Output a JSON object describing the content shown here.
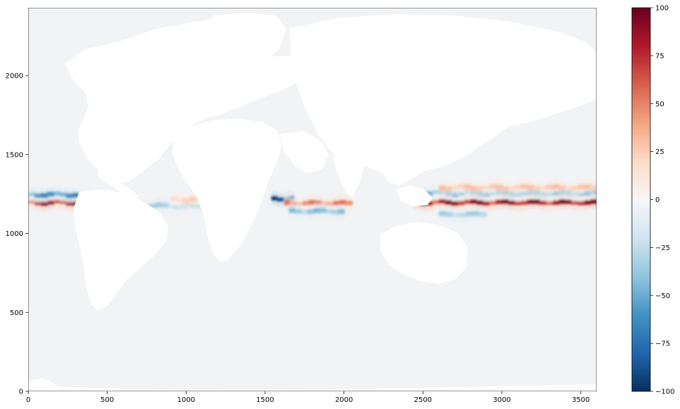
{
  "figure": {
    "background_color": "#ffffff",
    "land_color": "#ffffff",
    "ocean_base_color": "#f2f3f5"
  },
  "chart_data": {
    "type": "heatmap",
    "title": "",
    "xlabel": "",
    "ylabel": "",
    "xlim": [
      0,
      3600
    ],
    "ylim": [
      0,
      2430
    ],
    "xticks": [
      "0",
      "500",
      "1000",
      "1500",
      "2000",
      "2500",
      "3000",
      "3500"
    ],
    "yticks": [
      "0",
      "500",
      "1000",
      "1500",
      "2000"
    ],
    "colorbar": {
      "colormap": "RdBu_r",
      "range": [
        -100,
        100
      ],
      "ticks": [
        "100",
        "75",
        "50",
        "25",
        "0",
        "−25",
        "−50",
        "−75",
        "−100"
      ],
      "stops": [
        "#053061",
        "#2166ac",
        "#4393c3",
        "#92c5de",
        "#d1e5f0",
        "#f7f7f7",
        "#fddbc7",
        "#f4a582",
        "#d6604d",
        "#b2182b",
        "#67001f"
      ]
    },
    "features": [
      {
        "name": "equatorial-pacific-east-positive",
        "x_range": [
          0,
          320
        ],
        "y_center": 1195,
        "peak": 90
      },
      {
        "name": "equatorial-pacific-east-negative",
        "x_range": [
          0,
          320
        ],
        "y_center": 1245,
        "peak": -65
      },
      {
        "name": "equatorial-atlantic-negative",
        "x_range": [
          650,
          1200
        ],
        "y_center": 1175,
        "peak": -35
      },
      {
        "name": "equatorial-atlantic-positive",
        "x_range": [
          900,
          1180
        ],
        "y_center": 1215,
        "peak": 25
      },
      {
        "name": "somali-current-negative",
        "x_range": [
          1540,
          1680
        ],
        "y_center": 1220,
        "peak": -95
      },
      {
        "name": "equatorial-indian-positive",
        "x_range": [
          1620,
          2050
        ],
        "y_center": 1190,
        "peak": 55
      },
      {
        "name": "equatorial-indian-negative",
        "x_range": [
          1650,
          2000
        ],
        "y_center": 1140,
        "peak": -45
      },
      {
        "name": "equatorial-pacific-west-positive",
        "x_range": [
          2440,
          3600
        ],
        "y_center": 1195,
        "peak": 95
      },
      {
        "name": "equatorial-pacific-west-negative",
        "x_range": [
          2440,
          3600
        ],
        "y_center": 1255,
        "peak": -55
      },
      {
        "name": "equatorial-pacific-north-positive",
        "x_range": [
          2600,
          3600
        ],
        "y_center": 1290,
        "peak": 30
      },
      {
        "name": "equatorial-pacific-south-negative",
        "x_range": [
          2600,
          2900
        ],
        "y_center": 1120,
        "peak": -35
      }
    ]
  }
}
